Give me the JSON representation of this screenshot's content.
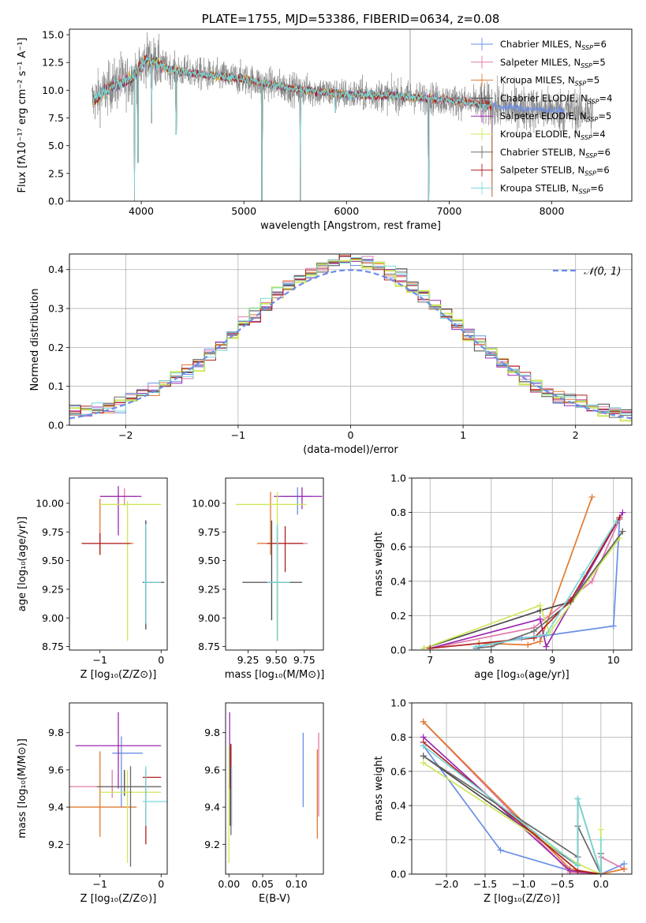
{
  "colors": {
    "chab_miles": "#6a8ee8",
    "salp_miles": "#e07aa8",
    "krou_miles": "#e07a30",
    "chab_elodie": "#4a4a4a",
    "salp_elodie": "#9a2ab0",
    "krou_elodie": "#cfe85a",
    "chab_stelib": "#6a6a6a",
    "salp_stelib": "#b02020",
    "krou_stelib": "#7ad8d8",
    "grid": "#b0b0b0",
    "gauss": "#6a8ee8"
  },
  "chart_data": [
    {
      "id": "spectrum",
      "type": "line",
      "title": "PLATE=1755, MJD=53386, FIBERID=0634, z=0.08",
      "xlabel": "wavelength [Angstrom, rest frame]",
      "ylabel": "Flux [fλ10⁻¹⁷ erg cm⁻² s⁻¹ A⁻¹]",
      "xlim": [
        3300,
        8780
      ],
      "ylim": [
        0,
        15.5
      ],
      "xticks": [
        "4000",
        "5000",
        "6000",
        "7000",
        "8000"
      ],
      "yticks": [
        "0.0",
        "2.5",
        "5.0",
        "7.5",
        "10.0",
        "12.5",
        "15.0"
      ],
      "grid": false,
      "legend_placement": "top-right",
      "legend": [
        {
          "label": "Chabrier MILES, N",
          "sub": "SSP",
          "tail": "=6",
          "color": "chab_miles"
        },
        {
          "label": "Salpeter MILES, N",
          "sub": "SSP",
          "tail": "=5",
          "color": "salp_miles"
        },
        {
          "label": "Kroupa MILES, N",
          "sub": "SSP",
          "tail": "=5",
          "color": "krou_miles"
        },
        {
          "label": "Chabrier ELODIE, N",
          "sub": "SSP",
          "tail": "=4",
          "color": "chab_elodie"
        },
        {
          "label": "Salpeter ELODIE, N",
          "sub": "SSP",
          "tail": "=5",
          "color": "salp_elodie"
        },
        {
          "label": "Kroupa ELODIE, N",
          "sub": "SSP",
          "tail": "=4",
          "color": "krou_elodie"
        },
        {
          "label": "Chabrier STELIB, N",
          "sub": "SSP",
          "tail": "=6",
          "color": "chab_stelib"
        },
        {
          "label": "Salpeter STELIB, N",
          "sub": "SSP",
          "tail": "=6",
          "color": "salp_stelib"
        },
        {
          "label": "Kroupa STELIB, N",
          "sub": "SSP",
          "tail": "=6",
          "color": "krou_stelib"
        }
      ],
      "continuum": {
        "x": [
          3520,
          3700,
          3900,
          4050,
          4300,
          4600,
          5000,
          5500,
          6000,
          6500,
          7000,
          7500,
          7800,
          8000,
          8500
        ],
        "y": [
          9.0,
          10.3,
          11.0,
          12.8,
          11.8,
          11.4,
          11.0,
          10.1,
          9.6,
          9.5,
          9.1,
          8.5,
          8.3,
          8.2,
          8.0
        ]
      },
      "models_end": {
        "miles": 7420,
        "elodie": 6820,
        "stelib": 7410
      },
      "dips": [
        {
          "x": 3934,
          "y": 0.0
        },
        {
          "x": 3969,
          "y": 3.5
        },
        {
          "x": 4102,
          "y": 7.0
        },
        {
          "x": 4340,
          "y": 6.0
        },
        {
          "x": 5175,
          "y": 0.0
        },
        {
          "x": 5550,
          "y": 0.0
        },
        {
          "x": 5893,
          "y": 8.0
        },
        {
          "x": 6800,
          "y": 0.0
        },
        {
          "x": 7420,
          "y": 0.4
        }
      ],
      "spikes": [
        {
          "x": 6620,
          "y": 15.5
        },
        {
          "x": 3800,
          "y": 13.5
        },
        {
          "x": 4060,
          "y": 14.8
        }
      ]
    },
    {
      "id": "residuals",
      "type": "line",
      "xlabel": "(data-model)/error",
      "ylabel": "Normed distribution",
      "xlim": [
        -2.5,
        2.5
      ],
      "ylim": [
        0,
        0.44
      ],
      "xticks": [
        "−2",
        "−1",
        "0",
        "1",
        "2"
      ],
      "yticks": [
        "0.0",
        "0.1",
        "0.2",
        "0.3",
        "0.4"
      ],
      "grid": true,
      "legend_placement": "top-right",
      "legend": [
        {
          "label": "𝒩(0, 1)",
          "style": "dashed",
          "color": "gauss"
        }
      ],
      "bin_width": 0.1,
      "bin_start": -2.5
    },
    {
      "id": "age_vs_Z",
      "type": "scatter",
      "xlabel": "Z [log₁₀(Z/Z⊙)]",
      "ylabel": "age  [log₁₀(age/yr)]",
      "xlim": [
        -1.5,
        0.1
      ],
      "ylim": [
        8.72,
        10.22
      ],
      "xticks": [
        "−1",
        "0"
      ],
      "yticks": [
        "8.75",
        "9.00",
        "9.25",
        "9.50",
        "9.75",
        "10.00"
      ],
      "grid": false,
      "crosses": [
        {
          "color": "chab_miles",
          "x": -0.25,
          "y": 9.31,
          "x0": -0.3,
          "x1": 0.05,
          "y0": 8.95,
          "y1": 9.85
        },
        {
          "color": "salp_miles",
          "x": -0.6,
          "y": 10.06,
          "x0": -1.0,
          "x1": -0.4,
          "y0": 9.98,
          "y1": 10.13
        },
        {
          "color": "krou_miles",
          "x": -1.0,
          "y": 9.65,
          "x0": -1.3,
          "x1": -0.45,
          "y0": 9.55,
          "y1": 10.04
        },
        {
          "color": "chab_elodie",
          "x": -0.25,
          "y": 9.31,
          "x0": -0.3,
          "x1": 0.05,
          "y0": 8.9,
          "y1": 9.85
        },
        {
          "color": "salp_elodie",
          "x": -0.7,
          "y": 10.06,
          "x0": -1.0,
          "x1": -0.32,
          "y0": 9.72,
          "y1": 10.15
        },
        {
          "color": "krou_elodie",
          "x": -0.55,
          "y": 9.99,
          "x0": -1.0,
          "x1": 0.0,
          "y0": 8.8,
          "y1": 10.02
        },
        {
          "color": "chab_stelib",
          "x": -0.25,
          "y": 9.31,
          "x0": -0.3,
          "x1": 0.05,
          "y0": 8.95,
          "y1": 9.78
        },
        {
          "color": "salp_stelib",
          "x": -1.0,
          "y": 9.65,
          "x0": -1.3,
          "x1": -0.5,
          "y0": 9.55,
          "y1": 9.74
        },
        {
          "color": "krou_stelib",
          "x": -0.25,
          "y": 9.31,
          "x0": -0.28,
          "x1": 0.0,
          "y0": 8.95,
          "y1": 9.82
        }
      ]
    },
    {
      "id": "age_vs_mass",
      "type": "scatter",
      "xlabel": "mass [log₁₀(M/M⊙)]",
      "ylabel": "",
      "xlim": [
        9.05,
        9.92
      ],
      "ylim": [
        8.72,
        10.22
      ],
      "xticks": [
        "9.25",
        "9.50",
        "9.75"
      ],
      "yticks": [
        "8.75",
        "9.00",
        "9.25",
        "9.50",
        "9.75",
        "10.00"
      ],
      "grid": false,
      "crosses": [
        {
          "color": "chab_miles",
          "x": 9.69,
          "y": 10.06,
          "x0": 9.55,
          "x1": 9.82,
          "y0": 9.9,
          "y1": 10.14
        },
        {
          "color": "salp_miles",
          "x": 9.51,
          "y": 9.65,
          "x0": 9.35,
          "x1": 9.78,
          "y0": 9.55,
          "y1": 9.74
        },
        {
          "color": "krou_miles",
          "x": 9.45,
          "y": 9.65,
          "x0": 9.33,
          "x1": 9.73,
          "y0": 9.55,
          "y1": 10.1
        },
        {
          "color": "chab_elodie",
          "x": 9.46,
          "y": 9.31,
          "x0": 9.2,
          "x1": 9.73,
          "y0": 8.98,
          "y1": 9.85
        },
        {
          "color": "salp_elodie",
          "x": 9.73,
          "y": 10.06,
          "x0": 9.48,
          "x1": 9.91,
          "y0": 9.95,
          "y1": 10.14
        },
        {
          "color": "krou_elodie",
          "x": 9.51,
          "y": 9.99,
          "x0": 9.14,
          "x1": 9.77,
          "y0": 8.8,
          "y1": 10.1
        },
        {
          "color": "chab_stelib",
          "x": 9.51,
          "y": 9.31,
          "x0": 9.2,
          "x1": 9.72,
          "y0": 8.8,
          "y1": 9.8
        },
        {
          "color": "salp_stelib",
          "x": 9.58,
          "y": 9.65,
          "x0": 9.42,
          "x1": 9.74,
          "y0": 9.4,
          "y1": 9.8
        },
        {
          "color": "krou_stelib",
          "x": 9.51,
          "y": 9.31,
          "x0": 9.42,
          "x1": 9.62,
          "y0": 8.8,
          "y1": 9.82
        }
      ]
    },
    {
      "id": "weight_vs_age",
      "type": "line",
      "xlabel": "age  [log₁₀(age/yr)]",
      "ylabel": "mass weight",
      "xlim": [
        6.7,
        10.3
      ],
      "ylim": [
        0,
        1.0
      ],
      "xticks": [
        "7",
        "8",
        "9",
        "10"
      ],
      "yticks": [
        "0.0",
        "0.2",
        "0.4",
        "0.6",
        "0.8",
        "1.0"
      ],
      "grid": true,
      "series": [
        {
          "color": "chab_miles",
          "x": [
            7.8,
            8.5,
            8.8,
            10.0,
            10.1
          ],
          "y": [
            0.02,
            0.07,
            0.08,
            0.14,
            0.76
          ]
        },
        {
          "color": "salp_miles",
          "x": [
            7.0,
            8.7,
            9.65,
            10.1
          ],
          "y": [
            0.01,
            0.13,
            0.4,
            0.76
          ]
        },
        {
          "color": "krou_miles",
          "x": [
            7.8,
            8.6,
            8.8,
            9.65
          ],
          "y": [
            0.04,
            0.03,
            0.05,
            0.89
          ]
        },
        {
          "color": "chab_elodie",
          "x": [
            6.9,
            8.8,
            9.3,
            10.15
          ],
          "y": [
            0.01,
            0.23,
            0.28,
            0.69
          ]
        },
        {
          "color": "salp_elodie",
          "x": [
            7.0,
            8.8,
            8.9,
            10.15
          ],
          "y": [
            0.01,
            0.18,
            0.02,
            0.8
          ]
        },
        {
          "color": "krou_elodie",
          "x": [
            6.9,
            8.8,
            8.95,
            10.1
          ],
          "y": [
            0.01,
            0.26,
            0.1,
            0.65
          ]
        },
        {
          "color": "chab_stelib",
          "x": [
            7.75,
            8.0,
            8.7,
            9.3,
            10.15
          ],
          "y": [
            0.01,
            0.02,
            0.11,
            0.28,
            0.69
          ]
        },
        {
          "color": "salp_stelib",
          "x": [
            7.0,
            8.7,
            9.3,
            10.1
          ],
          "y": [
            0.01,
            0.07,
            0.29,
            0.77
          ]
        },
        {
          "color": "krou_stelib",
          "x": [
            7.75,
            8.9,
            9.5,
            10.05
          ],
          "y": [
            0.02,
            0.09,
            0.44,
            0.75
          ]
        }
      ]
    },
    {
      "id": "mass_vs_Z",
      "type": "scatter",
      "xlabel": "Z [log₁₀(Z/Z⊙)]",
      "ylabel": "mass [log₁₀(M/M⊙)]",
      "xlim": [
        -1.5,
        0.1
      ],
      "ylim": [
        9.04,
        9.96
      ],
      "xticks": [
        "−1",
        "0"
      ],
      "yticks": [
        "9.2",
        "9.4",
        "9.6",
        "9.8"
      ],
      "grid": false,
      "crosses": [
        {
          "color": "chab_miles",
          "x": -0.65,
          "y": 9.69,
          "x0": -0.8,
          "x1": -0.3,
          "y0": 9.4,
          "y1": 9.78
        },
        {
          "color": "salp_miles",
          "x": -0.8,
          "y": 9.51,
          "x0": -1.5,
          "x1": -0.3,
          "y0": 9.45,
          "y1": 9.6
        },
        {
          "color": "krou_miles",
          "x": -1.0,
          "y": 9.4,
          "x0": -1.5,
          "x1": -0.4,
          "y0": 9.24,
          "y1": 9.7
        },
        {
          "color": "chab_elodie",
          "x": -0.6,
          "y": 9.51,
          "x0": -1.05,
          "x1": 0.0,
          "y0": 9.46,
          "y1": 9.6
        },
        {
          "color": "salp_elodie",
          "x": -0.7,
          "y": 9.73,
          "x0": -1.4,
          "x1": 0.0,
          "y0": 9.5,
          "y1": 9.91
        },
        {
          "color": "krou_elodie",
          "x": -0.55,
          "y": 9.48,
          "x0": -1.0,
          "x1": 0.0,
          "y0": 9.1,
          "y1": 9.6
        },
        {
          "color": "chab_stelib",
          "x": -0.5,
          "y": 9.51,
          "x0": -1.05,
          "x1": 0.0,
          "y0": 9.08,
          "y1": 9.62
        },
        {
          "color": "salp_stelib",
          "x": -0.25,
          "y": 9.56,
          "x0": -0.3,
          "x1": 0.0,
          "y0": 9.2,
          "y1": 9.6
        },
        {
          "color": "krou_stelib",
          "x": -0.25,
          "y": 9.43,
          "x0": -0.3,
          "x1": 0.1,
          "y0": 9.3,
          "y1": 9.62
        }
      ]
    },
    {
      "id": "mass_vs_ebv",
      "type": "scatter",
      "xlabel": "E(B-V)",
      "ylabel": "",
      "xlim": [
        -0.005,
        0.14
      ],
      "ylim": [
        9.04,
        9.96
      ],
      "xticks": [
        "0.00",
        "0.05",
        "0.10"
      ],
      "yticks": [
        "9.2",
        "9.4",
        "9.6",
        "9.8"
      ],
      "grid": false,
      "crosses": [
        {
          "color": "chab_miles",
          "x": 0.11,
          "y": 9.6,
          "x0": 0.11,
          "x1": 0.11,
          "y0": 9.4,
          "y1": 9.8
        },
        {
          "color": "salp_miles",
          "x": 0.133,
          "y": 9.55,
          "x0": 0.133,
          "x1": 0.133,
          "y0": 9.35,
          "y1": 9.8
        },
        {
          "color": "krou_miles",
          "x": 0.131,
          "y": 9.47,
          "x0": 0.131,
          "x1": 0.131,
          "y0": 9.23,
          "y1": 9.71
        },
        {
          "color": "chab_elodie",
          "x": 0.002,
          "y": 9.51,
          "x0": 0.002,
          "x1": 0.002,
          "y0": 9.3,
          "y1": 9.73
        },
        {
          "color": "salp_elodie",
          "x": 0.001,
          "y": 9.73,
          "x0": 0.001,
          "x1": 0.001,
          "y0": 9.5,
          "y1": 9.91
        },
        {
          "color": "krou_elodie",
          "x": 0.0,
          "y": 9.48,
          "x0": 0.0,
          "x1": 0.0,
          "y0": 9.1,
          "y1": 9.73
        },
        {
          "color": "chab_stelib",
          "x": 0.003,
          "y": 9.51,
          "x0": 0.003,
          "x1": 0.003,
          "y0": 9.25,
          "y1": 9.74
        },
        {
          "color": "salp_stelib",
          "x": 0.003,
          "y": 9.56,
          "x0": 0.003,
          "x1": 0.003,
          "y0": 9.3,
          "y1": 9.74
        },
        {
          "color": "krou_stelib",
          "x": 0.004,
          "y": 9.43,
          "x0": 0.004,
          "x1": 0.004,
          "y0": 9.3,
          "y1": 9.62
        }
      ]
    },
    {
      "id": "weight_vs_Z",
      "type": "line",
      "xlabel": "Z [log₁₀(Z/Z⊙)]",
      "ylabel": "mass weight",
      "xlim": [
        -2.45,
        0.4
      ],
      "ylim": [
        0,
        1.0
      ],
      "xticks": [
        "−2.0",
        "−1.5",
        "−1.0",
        "−0.5",
        "0.0"
      ],
      "yticks": [
        "0.0",
        "0.2",
        "0.4",
        "0.6",
        "0.8",
        "1.0"
      ],
      "grid": true,
      "series": [
        {
          "color": "chab_miles",
          "x": [
            -2.3,
            -1.3,
            -0.4,
            0.0,
            0.3
          ],
          "y": [
            0.75,
            0.14,
            0.02,
            0.0,
            0.06
          ]
        },
        {
          "color": "salp_miles",
          "x": [
            -2.3,
            -0.4,
            0.0,
            0.0,
            0.3
          ],
          "y": [
            0.89,
            0.01,
            0.0,
            0.1,
            0.03
          ]
        },
        {
          "color": "krou_miles",
          "x": [
            -2.3,
            -0.4,
            0.0,
            0.3
          ],
          "y": [
            0.89,
            0.03,
            0.0,
            0.03
          ]
        },
        {
          "color": "chab_elodie",
          "x": [
            -2.3,
            -0.3,
            -0.3,
            0.0,
            0.0
          ],
          "y": [
            0.69,
            0.05,
            0.44,
            0.0,
            0.12
          ]
        },
        {
          "color": "salp_elodie",
          "x": [
            -2.3,
            -0.4,
            0.0
          ],
          "y": [
            0.8,
            0.02,
            0.0
          ]
        },
        {
          "color": "krou_elodie",
          "x": [
            -2.3,
            -0.3,
            0.0,
            0.0
          ],
          "y": [
            0.65,
            0.06,
            0.0,
            0.26
          ]
        },
        {
          "color": "chab_stelib",
          "x": [
            -2.3,
            -0.3,
            -0.3,
            0.0,
            0.0
          ],
          "y": [
            0.69,
            0.1,
            0.28,
            0.0,
            0.12
          ]
        },
        {
          "color": "salp_stelib",
          "x": [
            -2.3,
            -0.3,
            0.0
          ],
          "y": [
            0.77,
            0.02,
            0.0
          ]
        },
        {
          "color": "krou_stelib",
          "x": [
            -2.3,
            -0.3,
            -0.3,
            0.0,
            0.0
          ],
          "y": [
            0.75,
            0.05,
            0.44,
            0.0,
            0.2
          ]
        }
      ]
    }
  ]
}
